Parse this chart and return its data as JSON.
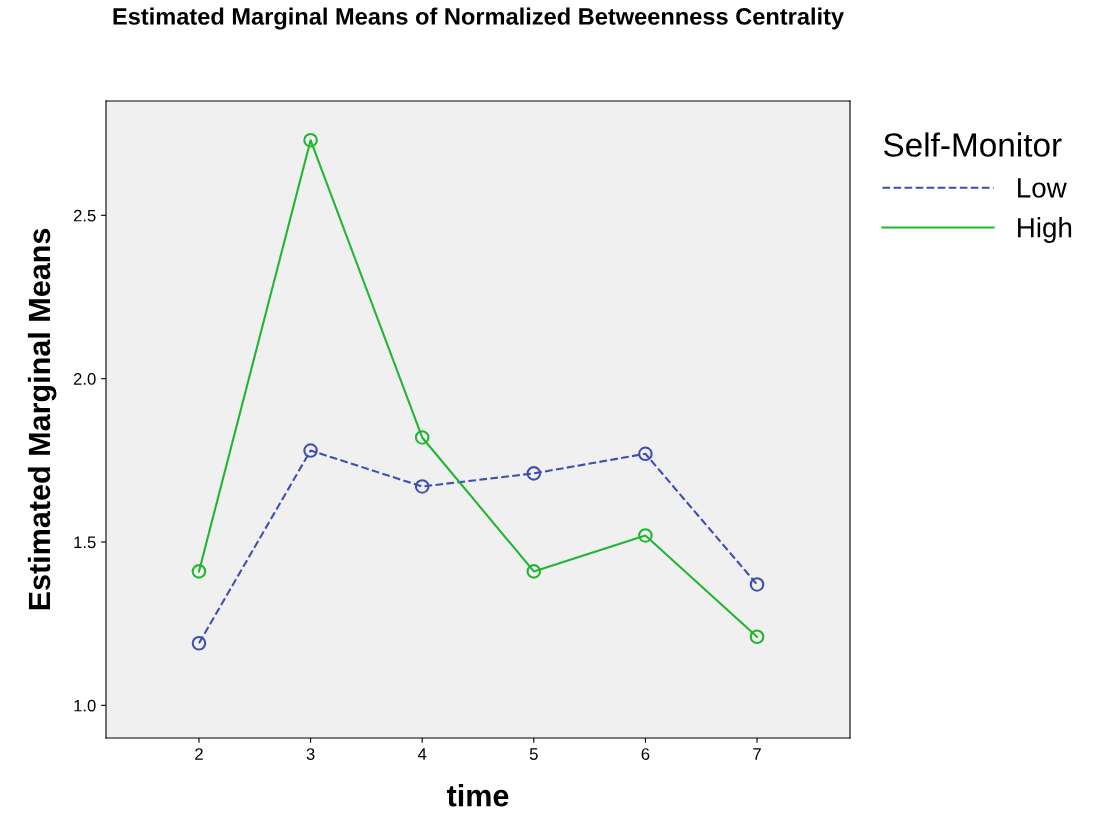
{
  "chart_data": {
    "type": "line",
    "title": "Estimated Marginal Means of Normalized Betweenness Centrality",
    "xlabel": "time",
    "ylabel": "Estimated Marginal Means",
    "legend_title": "Self-Monitor",
    "categories": [
      "2",
      "3",
      "4",
      "5",
      "6",
      "7"
    ],
    "series": [
      {
        "name": "Low",
        "color": "#3f4fae",
        "line_style": "dashed",
        "values": [
          1.19,
          1.78,
          1.67,
          1.71,
          1.77,
          1.37
        ]
      },
      {
        "name": "High",
        "color": "#22b531",
        "line_style": "solid",
        "values": [
          1.41,
          2.73,
          1.82,
          1.41,
          1.52,
          1.21
        ]
      }
    ],
    "marker": "circle",
    "ylim": [
      0.9,
      2.85
    ],
    "yticks": [
      {
        "value": 1,
        "label": "1.0"
      },
      1.5,
      {
        "value": 2,
        "label": "2.0"
      },
      2.5
    ],
    "grid": false,
    "legend": "top right"
  }
}
